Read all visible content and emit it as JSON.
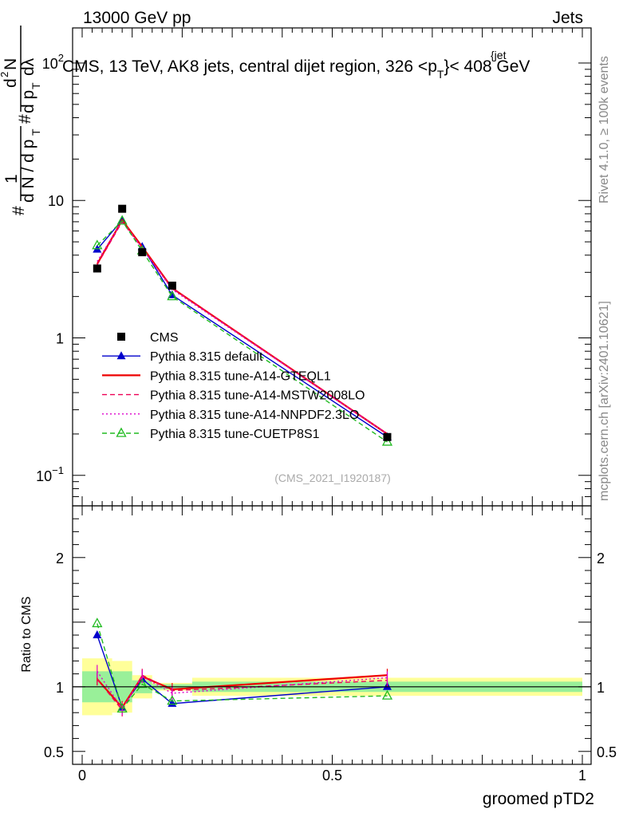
{
  "header": {
    "left": "13000 GeV pp",
    "right": "Jets"
  },
  "side_labels": {
    "rivet": "Rivet 4.1.0, ≥ 100k events",
    "mcplots": "mcplots.cern.ch [arXiv:2401.10621]"
  },
  "colors": {
    "cms": "#000000",
    "default": "#0000cc",
    "gteql1": "#ee0000",
    "mstw": "#ee0055",
    "nnpdf": "#dd00cc",
    "cuetp8s1": "#22bb22",
    "band_green": "#99f099",
    "band_yellow": "#ffff99"
  },
  "chart_data": {
    "type": "line",
    "title": "CMS, 13 TeV, AK8 jets, central dijet region, 326 <p_T^{jet}< 408 GeV",
    "title_parts": {
      "before": "CMS, 13 TeV, AK8 jets, central dijet region, 326 <p",
      "sub": "T",
      "sup": "{jet",
      "after": "}< 408 GeV"
    },
    "ylabel_parts": {
      "hash1": "#",
      "one": "1",
      "dn": "d N / d p",
      "t1": "T",
      "hash2": "#",
      "d2n": "d",
      "two": "2",
      "n": "N",
      "dpt": "d p",
      "t2": "T",
      "dl": "dλ"
    },
    "reference": "(CMS_2021_I1920187)",
    "xlabel": "groomed pTD2",
    "ratio_ylabel": "Ratio to CMS",
    "xlim": [
      0,
      1
    ],
    "ylim": [
      0.06,
      180
    ],
    "ratio_ylim": [
      0.4,
      2.4
    ],
    "x_ticks": [
      "0",
      "0.5",
      "1"
    ],
    "y_ticks": [
      "10−1",
      "1",
      "10",
      "10²"
    ],
    "y_tick_parts": [
      {
        "base": "10",
        "exp": "−1"
      },
      {
        "base": "1",
        "exp": ""
      },
      {
        "base": "10",
        "exp": ""
      },
      {
        "base": "10",
        "exp": "2"
      }
    ],
    "ratio_ticks": [
      "0.5",
      "1",
      "2"
    ],
    "bin_edges": [
      0,
      0.06,
      0.1,
      0.14,
      0.22,
      1
    ],
    "x": [
      0.03,
      0.08,
      0.12,
      0.18,
      0.61
    ],
    "data": {
      "name": "CMS",
      "values": [
        3.2,
        8.7,
        4.2,
        2.4,
        0.19
      ],
      "stat_band": [
        0.12,
        0.12,
        0.05,
        0.02,
        0.04
      ],
      "total_band": [
        0.22,
        0.2,
        0.09,
        0.03,
        0.07
      ]
    },
    "series": [
      {
        "name": "Pythia 8.315 default",
        "color_key": "default",
        "style": "solid",
        "marker": "triangle",
        "values": [
          4.4,
          7.2,
          4.6,
          2.05,
          0.19
        ],
        "ratio": [
          1.4,
          0.84,
          1.06,
          0.87,
          1.0
        ]
      },
      {
        "name": "Pythia 8.315 tune-A14-GTEQL1",
        "color_key": "gteql1",
        "style": "solid",
        "marker": "none",
        "values": [
          3.45,
          7.2,
          4.6,
          2.3,
          0.2
        ],
        "ratio": [
          1.06,
          0.84,
          1.08,
          0.98,
          1.09
        ]
      },
      {
        "name": "Pythia 8.315 tune-A14-MSTW2008LO",
        "color_key": "mstw",
        "style": "dashed",
        "marker": "none",
        "values": [
          3.4,
          7.0,
          4.5,
          2.3,
          0.2
        ],
        "ratio": [
          1.06,
          0.82,
          1.09,
          0.97,
          1.05
        ]
      },
      {
        "name": "Pythia 8.315 tune-A14-NNPDF2.3LO",
        "color_key": "nnpdf",
        "style": "dotted",
        "marker": "none",
        "values": [
          3.6,
          7.1,
          4.5,
          2.25,
          0.2
        ],
        "ratio": [
          1.12,
          0.83,
          1.08,
          0.95,
          1.07
        ]
      },
      {
        "name": "Pythia 8.315 tune-CUETP8S1",
        "color_key": "cuetp8s1",
        "style": "dashed",
        "marker": "open-triangle",
        "values": [
          4.7,
          7.1,
          4.3,
          2.0,
          0.175
        ],
        "ratio": [
          1.49,
          0.83,
          1.02,
          0.89,
          0.93
        ]
      }
    ]
  }
}
